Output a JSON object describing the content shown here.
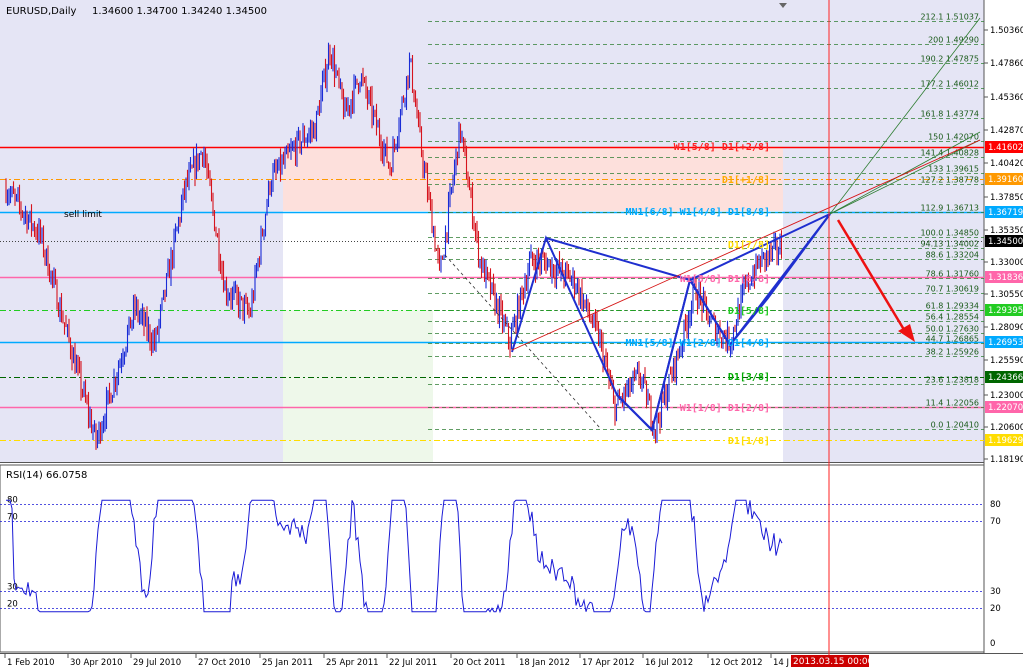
{
  "header": {
    "symbol_tf": "EURUSD,Daily",
    "ohlc": "1.34600 1.34700 1.34240 1.34500",
    "sell_limit_label": "sell limit"
  },
  "price_axis": {
    "ticks": [
      "1.50360",
      "1.47860",
      "1.45360",
      "1.42870",
      "1.40420",
      "1.37850",
      "1.35350",
      "1.33000",
      "1.30550",
      "1.28090",
      "1.25590",
      "1.23000",
      "1.20600",
      "1.18190"
    ],
    "tick_prices": [
      1.5036,
      1.4786,
      1.4536,
      1.4287,
      1.4042,
      1.3785,
      1.3535,
      1.33,
      1.3055,
      1.2809,
      1.2559,
      1.23,
      1.206,
      1.1819
    ],
    "tags": [
      {
        "text": "1.41602",
        "price": 1.41602,
        "bg": "#ff0000",
        "fg": "#ffffff"
      },
      {
        "text": "1.39160",
        "price": 1.3916,
        "bg": "#ff9900",
        "fg": "#ffffff"
      },
      {
        "text": "1.36719",
        "price": 1.36719,
        "bg": "#00aaff",
        "fg": "#ffffff"
      },
      {
        "text": "1.34500",
        "price": 1.345,
        "bg": "#000000",
        "fg": "#ffffff"
      },
      {
        "text": "1.31836",
        "price": 1.31836,
        "bg": "#ff66aa",
        "fg": "#ffffff"
      },
      {
        "text": "1.29395",
        "price": 1.29395,
        "bg": "#22cc22",
        "fg": "#ffffff"
      },
      {
        "text": "1.26953",
        "price": 1.26953,
        "bg": "#00aaff",
        "fg": "#ffffff"
      },
      {
        "text": "1.24366",
        "price": 1.24366,
        "bg": "#006600",
        "fg": "#ffffff"
      },
      {
        "text": "1.22070",
        "price": 1.2207,
        "bg": "#ff66aa",
        "fg": "#ffffff"
      },
      {
        "text": "1.19629",
        "price": 1.19629,
        "bg": "#ffdd00",
        "fg": "#ffffff"
      }
    ]
  },
  "fib_levels": [
    {
      "text": "212.1 1.51037",
      "price": 1.51037
    },
    {
      "text": "200 1.49290",
      "price": 1.4929
    },
    {
      "text": "190.2 1.47875",
      "price": 1.47875
    },
    {
      "text": "177.2 1.46012",
      "price": 1.46012
    },
    {
      "text": "161.8 1.43774",
      "price": 1.43774
    },
    {
      "text": "150 1.42070",
      "price": 1.4207
    },
    {
      "text": "141.4 1.40828",
      "price": 1.40828
    },
    {
      "text": "133 1.39615",
      "price": 1.39615
    },
    {
      "text": "127.2 1.38778",
      "price": 1.38778
    },
    {
      "text": "112.9 1.36713",
      "price": 1.36713
    },
    {
      "text": "100.0 1.34850",
      "price": 1.3485
    },
    {
      "text": "94.13 1.34002",
      "price": 1.34002
    },
    {
      "text": "88.6 1.33204",
      "price": 1.33204
    },
    {
      "text": "78.6 1.31760",
      "price": 1.3176
    },
    {
      "text": "70.7 1.30619",
      "price": 1.30619
    },
    {
      "text": "61.8 1.29334",
      "price": 1.29334
    },
    {
      "text": "56.4 1.28554",
      "price": 1.28554
    },
    {
      "text": "50.0 1.27630",
      "price": 1.2763
    },
    {
      "text": "44.7 1.26865",
      "price": 1.26865
    },
    {
      "text": "38.2 1.25926",
      "price": 1.25926
    },
    {
      "text": "23.6 1.23818",
      "price": 1.23818
    },
    {
      "text": "11.4 1.22056",
      "price": 1.22056
    },
    {
      "text": "0.0 1.20410",
      "price": 1.2041
    }
  ],
  "murrey_labels": [
    {
      "text": "W1[5/8] D1[+2/8]",
      "price": 1.4135,
      "color": "#ff2222"
    },
    {
      "text": "D1[+1/8]",
      "price": 1.389,
      "color": "#ffaa00"
    },
    {
      "text": "MN1[6/8] W1[4/8] D1[8/8]",
      "price": 1.3645,
      "color": "#00aaff"
    },
    {
      "text": "D1[7/8]",
      "price": 1.34,
      "color": "#ffdd00"
    },
    {
      "text": "W1[3/8] D1[6/8]",
      "price": 1.315,
      "color": "#ff66aa"
    },
    {
      "text": "D1[5/8]",
      "price": 1.2905,
      "color": "#22cc22"
    },
    {
      "text": "MN1[5/8] W1[2/8] D1[4/8]",
      "price": 1.2665,
      "color": "#00aaff"
    },
    {
      "text": "D1[3/8]",
      "price": 1.2415,
      "color": "#00aa00"
    },
    {
      "text": "W1[1/8] D1[2/8]",
      "price": 1.218,
      "color": "#ff66aa"
    },
    {
      "text": "D1[1/8]",
      "price": 1.1935,
      "color": "#ffdd00"
    }
  ],
  "rsi": {
    "label": "RSI(14) 66.0758",
    "axis_labels": [
      "80",
      "70",
      "30",
      "20",
      "0"
    ],
    "left_labels": [
      "80",
      "70",
      "30",
      "20"
    ]
  },
  "time_axis": {
    "labels": [
      "1 Feb 2010",
      "30 Apr 2010",
      "29 Jul 2010",
      "27 Oct 2010",
      "25 Jan 2011",
      "25 Apr 2011",
      "22 Jul 2011",
      "20 Oct 2011",
      "18 Jan 2012",
      "17 Apr 2012",
      "16 Jul 2012",
      "12 Oct 2012",
      "14 J"
    ],
    "cursor_label": "2013.03.15 00:00"
  }
}
